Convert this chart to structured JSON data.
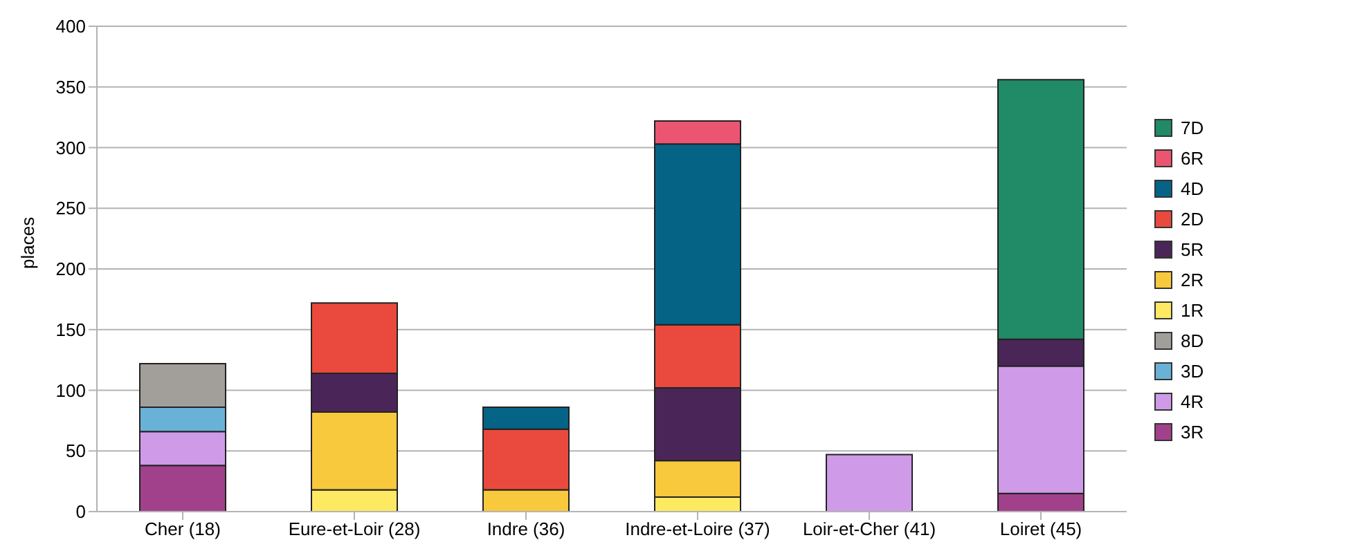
{
  "chart_data": {
    "type": "bar",
    "stacked": true,
    "ylabel": "places",
    "categories": [
      "Cher (18)",
      "Eure-et-Loir (28)",
      "Indre (36)",
      "Indre-et-Loire (37)",
      "Loir-et-Cher (41)",
      "Loiret (45)"
    ],
    "series": [
      {
        "name": "3R",
        "color": "#a2418b",
        "values": [
          38,
          null,
          null,
          null,
          null,
          15
        ]
      },
      {
        "name": "4R",
        "color": "#cf9be8",
        "values": [
          28,
          null,
          null,
          null,
          47,
          105
        ]
      },
      {
        "name": "3D",
        "color": "#6ab1d8",
        "values": [
          20,
          null,
          null,
          null,
          null,
          null
        ]
      },
      {
        "name": "8D",
        "color": "#a29f9a",
        "values": [
          36,
          null,
          null,
          null,
          null,
          null
        ]
      },
      {
        "name": "1R",
        "color": "#fdea62",
        "values": [
          null,
          18,
          null,
          12,
          null,
          null
        ]
      },
      {
        "name": "2R",
        "color": "#f8c93c",
        "values": [
          null,
          64,
          18,
          30,
          null,
          null
        ]
      },
      {
        "name": "5R",
        "color": "#4a2658",
        "values": [
          null,
          32,
          null,
          60,
          null,
          22
        ]
      },
      {
        "name": "2D",
        "color": "#e94a3d",
        "values": [
          null,
          58,
          50,
          52,
          null,
          null
        ]
      },
      {
        "name": "4D",
        "color": "#056486",
        "values": [
          null,
          null,
          18,
          149,
          null,
          null
        ]
      },
      {
        "name": "6R",
        "color": "#ec5571",
        "values": [
          null,
          null,
          null,
          19,
          null,
          null
        ]
      },
      {
        "name": "7D",
        "color": "#218a67",
        "values": [
          null,
          null,
          null,
          null,
          null,
          214
        ]
      }
    ],
    "ylim": [
      0,
      400
    ],
    "yticks": [
      0,
      50,
      100,
      150,
      200,
      250,
      300,
      350,
      400
    ],
    "grid": "y",
    "legend": "right"
  }
}
